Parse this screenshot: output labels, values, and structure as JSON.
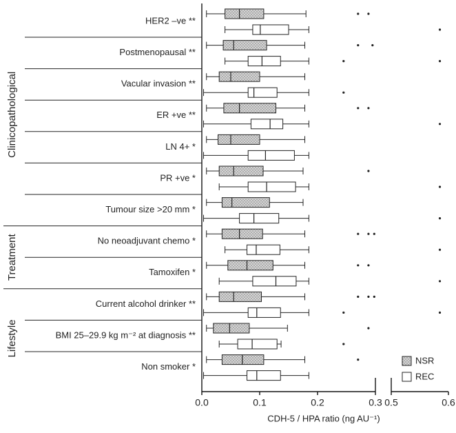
{
  "chart_data": {
    "type": "boxplot",
    "orientation": "horizontal",
    "xlabel": "CDH-5 / HPA ratio (ng AU⁻¹)",
    "xlim_segments": [
      [
        0,
        0.3
      ],
      [
        0.5,
        0.6
      ]
    ],
    "xticks": [
      {
        "value": 0,
        "label": "0.0"
      },
      0.1,
      0.2,
      0.3,
      0.5,
      0.6
    ],
    "categories": [
      "HER2 –ve **",
      "Postmenopausal **",
      "Vacular invasion **",
      "ER +ve **",
      "LN 4+ *",
      "PR +ve *",
      "Tumour size >20 mm *",
      "No neoadjuvant chemo *",
      "Tamoxifen *",
      "Current alcohol drinker **",
      "BMI 25–29.9 kg m⁻² at diagnosis **",
      "Non smoker *"
    ],
    "groups": [
      {
        "label": "Clinicopathological",
        "size": 7
      },
      {
        "label": "Treatment",
        "size": 2
      },
      {
        "label": "Lifestyle",
        "size": 3
      }
    ],
    "legend": "bottom-right",
    "series": [
      {
        "name": "NSR",
        "color": "#d4d4d4",
        "pattern": "dotted",
        "boxes": [
          {
            "low": 0.008,
            "q1": 0.04,
            "median": 0.065,
            "q3": 0.107,
            "high": 0.18,
            "outliers": [
              0.27,
              0.288
            ]
          },
          {
            "low": 0.008,
            "q1": 0.037,
            "median": 0.055,
            "q3": 0.112,
            "high": 0.178,
            "outliers": [
              0.27,
              0.295
            ]
          },
          {
            "low": 0.008,
            "q1": 0.03,
            "median": 0.05,
            "q3": 0.1,
            "high": 0.178,
            "outliers": []
          },
          {
            "low": 0.008,
            "q1": 0.038,
            "median": 0.065,
            "q3": 0.128,
            "high": 0.178,
            "outliers": [
              0.27,
              0.288
            ]
          },
          {
            "low": 0.008,
            "q1": 0.028,
            "median": 0.05,
            "q3": 0.1,
            "high": 0.178,
            "outliers": []
          },
          {
            "low": 0.008,
            "q1": 0.03,
            "median": 0.055,
            "q3": 0.106,
            "high": 0.175,
            "outliers": [
              0.288
            ]
          },
          {
            "low": 0.008,
            "q1": 0.035,
            "median": 0.052,
            "q3": 0.117,
            "high": 0.175,
            "outliers": []
          },
          {
            "low": 0.008,
            "q1": 0.035,
            "median": 0.065,
            "q3": 0.105,
            "high": 0.178,
            "outliers": [
              0.27,
              0.288,
              0.298
            ]
          },
          {
            "low": 0.008,
            "q1": 0.045,
            "median": 0.078,
            "q3": 0.123,
            "high": 0.178,
            "outliers": [
              0.27,
              0.288
            ]
          },
          {
            "low": 0.008,
            "q1": 0.03,
            "median": 0.055,
            "q3": 0.103,
            "high": 0.178,
            "outliers": [
              0.27,
              0.288,
              0.298
            ]
          },
          {
            "low": 0.008,
            "q1": 0.02,
            "median": 0.048,
            "q3": 0.082,
            "high": 0.148,
            "outliers": [
              0.288
            ]
          },
          {
            "low": 0.008,
            "q1": 0.035,
            "median": 0.07,
            "q3": 0.107,
            "high": 0.178,
            "outliers": [
              0.27
            ]
          }
        ]
      },
      {
        "name": "REC",
        "color": "#ffffff",
        "pattern": "none",
        "boxes": [
          {
            "low": 0.04,
            "q1": 0.088,
            "median": 0.101,
            "q3": 0.15,
            "high": 0.185,
            "outliers": [
              0.585
            ]
          },
          {
            "low": 0.04,
            "q1": 0.08,
            "median": 0.104,
            "q3": 0.136,
            "high": 0.185,
            "outliers": [
              0.245,
              0.585
            ]
          },
          {
            "low": 0.003,
            "q1": 0.08,
            "median": 0.09,
            "q3": 0.13,
            "high": 0.185,
            "outliers": [
              0.245
            ]
          },
          {
            "low": 0.003,
            "q1": 0.085,
            "median": 0.118,
            "q3": 0.14,
            "high": 0.185,
            "outliers": [
              0.585
            ]
          },
          {
            "low": 0.003,
            "q1": 0.08,
            "median": 0.11,
            "q3": 0.16,
            "high": 0.185,
            "outliers": []
          },
          {
            "low": 0.03,
            "q1": 0.08,
            "median": 0.112,
            "q3": 0.162,
            "high": 0.185,
            "outliers": [
              0.585
            ]
          },
          {
            "low": 0.003,
            "q1": 0.065,
            "median": 0.09,
            "q3": 0.133,
            "high": 0.185,
            "outliers": [
              0.585
            ]
          },
          {
            "low": 0.04,
            "q1": 0.078,
            "median": 0.094,
            "q3": 0.135,
            "high": 0.185,
            "outliers": [
              0.585
            ]
          },
          {
            "low": 0.03,
            "q1": 0.088,
            "median": 0.128,
            "q3": 0.163,
            "high": 0.185,
            "outliers": [
              0.585
            ]
          },
          {
            "low": 0.003,
            "q1": 0.08,
            "median": 0.095,
            "q3": 0.136,
            "high": 0.185,
            "outliers": [
              0.245,
              0.585
            ]
          },
          {
            "low": 0.03,
            "q1": 0.062,
            "median": 0.087,
            "q3": 0.13,
            "high": 0.137,
            "outliers": [
              0.245
            ]
          },
          {
            "low": 0.003,
            "q1": 0.078,
            "median": 0.095,
            "q3": 0.136,
            "high": 0.185,
            "outliers": []
          }
        ]
      }
    ]
  }
}
